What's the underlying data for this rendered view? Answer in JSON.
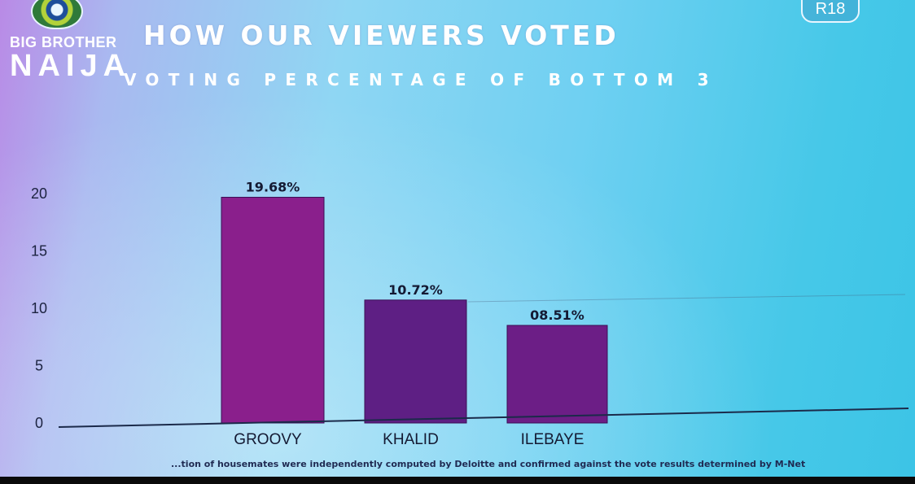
{
  "logo": {
    "line1": "BIG BROTHER",
    "line2": "NAIJA"
  },
  "rating_badge": "R18",
  "footnote": "...tion of housemates were independently computed by Deloitte and confirmed against the vote results determined by M-Net",
  "colors": {
    "bar_groovy": "#8a1f8c",
    "bar_khalid": "#5e1f84",
    "bar_ilebaye": "#6c1e86"
  },
  "chart_data": {
    "type": "bar",
    "title": "HOW OUR VIEWERS VOTED",
    "subtitle": "VOTING PERCENTAGE OF BOTTOM 3",
    "categories": [
      "GROOVY",
      "KHALID",
      "ILEBAYE"
    ],
    "values": [
      19.68,
      10.72,
      8.51
    ],
    "data_labels": [
      "19.68%",
      "10.72%",
      "08.51%"
    ],
    "y_ticks": [
      0,
      5,
      10,
      15,
      20
    ],
    "y_tick_labels": [
      "0",
      "5",
      "10",
      "15",
      "20"
    ],
    "ylim": [
      0,
      20
    ],
    "xlabel": "",
    "ylabel": "",
    "grid": false,
    "legend": "none"
  }
}
